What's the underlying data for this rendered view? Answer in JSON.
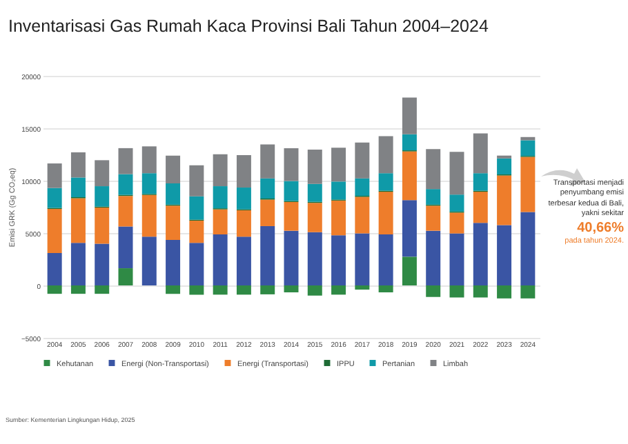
{
  "chart_data": {
    "type": "bar",
    "title": "Inventarisasi Gas Rumah Kaca Provinsi Bali Tahun 2004–2024",
    "ylabel": "Emisi GRK (Gg CO₂eq)",
    "categories": [
      "2004",
      "2005",
      "2006",
      "2007",
      "2008",
      "2009",
      "2010",
      "2011",
      "2012",
      "2013",
      "2014",
      "2015",
      "2016",
      "2017",
      "2018",
      "2019",
      "2020",
      "2021",
      "2022",
      "2023",
      "2024"
    ],
    "stacked": true,
    "series": [
      {
        "name": "Kehutanan",
        "color": "#2f8a45",
        "values": [
          -800,
          -800,
          -800,
          1640,
          0,
          -800,
          -880,
          -880,
          -880,
          -850,
          -660,
          -970,
          -880,
          -400,
          -660,
          2740,
          -1100,
          -1150,
          -1150,
          -1240,
          -1240
        ]
      },
      {
        "name": "Energi (Non-Transportasi)",
        "color": "#3a55a4",
        "values": [
          3100,
          4070,
          3980,
          3980,
          4650,
          4340,
          4070,
          4870,
          4650,
          5660,
          5220,
          5090,
          4780,
          4960,
          4870,
          5400,
          5220,
          4960,
          5970,
          5750,
          7000
        ]
      },
      {
        "name": "Energi (Transportasi)",
        "color": "#ee7d2b",
        "values": [
          4200,
          4250,
          3450,
          2920,
          3980,
          3270,
          2120,
          2390,
          2520,
          2530,
          2740,
          2790,
          3320,
          3490,
          4070,
          4650,
          2390,
          1990,
          2970,
          4740,
          5260
        ]
      },
      {
        "name": "IPPU",
        "color": "#1e6b35",
        "values": [
          100,
          100,
          100,
          100,
          100,
          100,
          100,
          100,
          100,
          100,
          100,
          100,
          100,
          100,
          100,
          100,
          100,
          100,
          100,
          100,
          100
        ]
      },
      {
        "name": "Pertanian",
        "color": "#0f9aa8",
        "values": [
          1900,
          1880,
          1940,
          1980,
          1980,
          2020,
          2210,
          2110,
          2070,
          1930,
          1900,
          1710,
          1710,
          1670,
          1670,
          1530,
          1490,
          1620,
          1670,
          1530,
          1490
        ]
      },
      {
        "name": "Limbah",
        "color": "#808285",
        "values": [
          2340,
          2400,
          2480,
          2480,
          2560,
          2660,
          2960,
          3050,
          3090,
          3230,
          3140,
          3270,
          3230,
          3410,
          3540,
          3500,
          3810,
          4070,
          3800,
          270,
          310
        ]
      }
    ],
    "ylim": [
      -5000,
      20000
    ],
    "yticks": [
      -5000,
      0,
      5000,
      10000,
      15000,
      20000
    ],
    "grid": "y",
    "legend": "bottom",
    "annotations": [
      "Transportasi menjadi penyumbang emisi terbesar kedua di Bali, yakni sekitar",
      "40,66%",
      "pada tahun 2024.",
      "Sumber: Kementerian Lingkungan Hidup, 2025"
    ]
  }
}
